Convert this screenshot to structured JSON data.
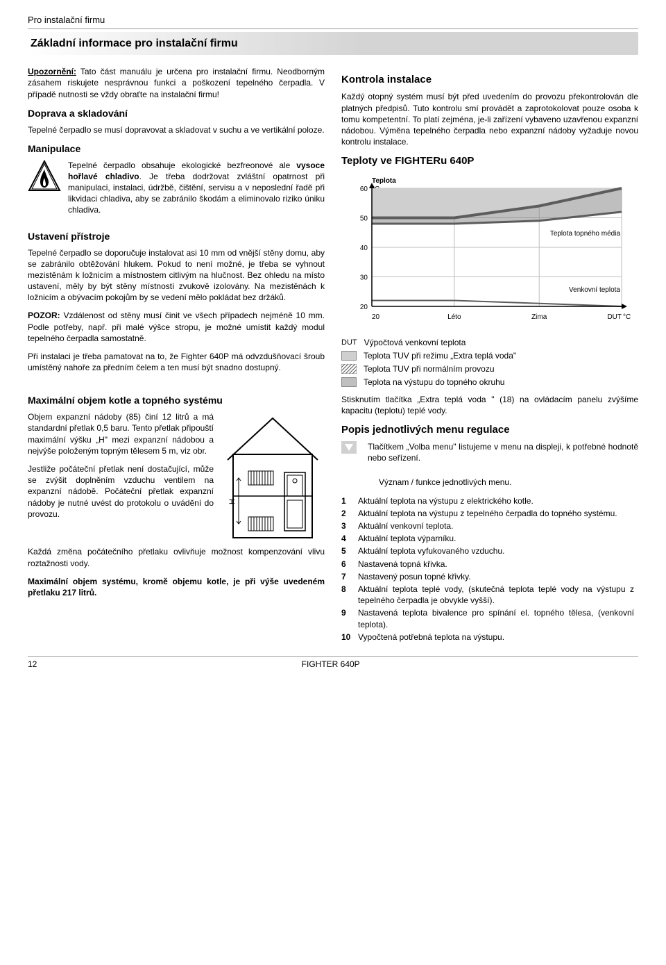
{
  "header": {
    "small": "Pro instalační firmu",
    "title": "Základní informace pro instalační firmu"
  },
  "left": {
    "p1a": "Upozornění:",
    "p1b": " Tato část manuálu je určena pro instalační firmu. Neodborným zásahem riskujete nesprávnou funkci a poškození tepelného čerpadla. V případě nutnosti se vždy obraťte na instalační firmu!",
    "h_transport": "Doprava a skladování",
    "p_transport": "Tepelné čerpadlo se musí dopravovat a skladovat v suchu a ve vertikální poloze.",
    "h_manip": "Manipulace",
    "p_manip": "Tepelné čerpadlo obsahuje ekologické bezfreonové ale ",
    "p_manip_b": "vysoce hořlavé chladivo",
    "p_manip2": ".\nJe třeba dodržovat zvláštní opatrnost při manipulaci, instalaci, údržbě, čištění, servisu a v neposlední řadě při likvidaci chladiva, aby se zabránilo škodám a eliminovalo riziko úniku chladiva.",
    "h_ustav": "Ustavení přístroje",
    "p_ustav1": "Tepelné čerpadlo se doporučuje instalovat asi 10 mm od vnější stěny domu, aby se zabránilo obtěžování hlukem. Pokud to není možné, je třeba se vyhnout mezistěnám k ložnicím a místnostem citlivým na hlučnost. Bez ohledu na místo ustavení, měly by být stěny místností zvukově izolovány. Na mezistěnách k ložnicím a obývacím pokojům by se vedení mělo pokládat bez držáků.",
    "p_ustav2a": "POZOR:",
    "p_ustav2b": " Vzdálenost od stěny musí činit ve všech případech nejméně 10 mm. Podle potřeby, např. při malé výšce stropu, je možné umístit každý modul tepelného čerpadla samostatně.",
    "p_ustav3": "Při instalaci je třeba pamatovat na to, že Fighter 640P má odvzdušňovací šroub umístěný nahoře za předním čelem a ten musí být snadno dostupný.",
    "h_maxvol": "Maximální objem kotle a topného systému",
    "p_maxvol1": "Objem expanzní nádoby (85) činí 12 litrů a má standardní přetlak 0,5 baru. Tento přetlak připouští maximální výšku „H\" mezi expanzní nádobou a nejvýše položeným topným tělesem 5 m, viz obr.",
    "p_maxvol2": "Jestliže počáteční přetlak není dostačující, může se zvýšit doplněním vzduchu ventilem na expanzní nádobě. Počáteční přetlak expanzní nádoby je nutné uvést do protokolu o uvádění do provozu.",
    "p_maxvol3": "Každá změna počátečního přetlaku ovlivňuje možnost kompenzování vlivu roztažnosti vody.",
    "p_maxvol4": "Maximální objem systému, kromě objemu kotle, je při výše uvedeném přetlaku 217 litrů."
  },
  "right": {
    "h_kontrola": "Kontrola instalace",
    "p_kontrola": "Každý otopný systém musí být před uvedením do provozu překontrolován dle platných předpisů. Tuto kontrolu smí provádět a zaprotokolovat pouze osoba k tomu kompetentní. To platí zejména, je-li zařízení vybaveno uzavřenou expanzní nádobou. Výměna tepelného čerpadla nebo expanzní nádoby vyžaduje novou kontrolu instalace.",
    "h_teploty": "Teploty ve FIGHTERu 640P",
    "chart": {
      "type": "line",
      "y_label": "Teplota",
      "y_unit": "°C",
      "y_min": 20,
      "y_max": 60,
      "y_ticks": [
        20,
        30,
        40,
        50,
        60
      ],
      "x_categories": [
        "20",
        "Léto",
        "Zima",
        "DUT"
      ],
      "x_unit": "°C",
      "line1_label": "Teplota topného média",
      "line2_label": "Venkovní teplota",
      "grid_color": "#bdbdbd",
      "line1_color": "#5c5c5c",
      "line2_color": "#5c5c5c",
      "fill_color_top": "#cfcfcf",
      "fill_color_gap": "#808080",
      "background": "#ffffff",
      "font_size": 10
    },
    "legend": [
      {
        "key": "DUT",
        "label": "Výpočtová venkovní teplota"
      },
      {
        "key": "solid",
        "label": "Teplota TUV při režimu „Extra teplá voda\""
      },
      {
        "key": "hatch",
        "label": "Teplota TUV při normálním provozu"
      },
      {
        "key": "gray",
        "label": "Teplota na výstupu do topného okruhu"
      }
    ],
    "p_button": "Stisknutím tlačítka „Extra teplá voda \" (18) na ovládacím panelu zvýšíme kapacitu (teplotu) teplé vody.",
    "h_menu": "Popis jednotlivých menu regulace",
    "p_menu_btn": "Tlačítkem „Volba menu\" listujeme v menu na displeji, k potřebné hodnotě nebo seřízení.",
    "p_menu_sub": "Význam / funkce jednotlivých menu.",
    "menu": [
      {
        "n": "1",
        "t": "Aktuální teplota na výstupu z elektrického kotle."
      },
      {
        "n": "2",
        "t": "Aktuální teplota na výstupu z tepelného čerpadla do topného systému."
      },
      {
        "n": "3",
        "t": "Aktuální venkovní teplota."
      },
      {
        "n": "4",
        "t": "Aktuální teplota výparníku."
      },
      {
        "n": "5",
        "t": "Aktuální teplota vyfukovaného vzduchu."
      },
      {
        "n": "6",
        "t": "Nastavená topná křivka."
      },
      {
        "n": "7",
        "t": "Nastavený posun topné křivky."
      },
      {
        "n": "8",
        "t": "Aktuální teplota teplé vody, (skutečná teplota teplé vody na výstupu z tepelného čerpadla je obvykle vyšší)."
      },
      {
        "n": "9",
        "t": "Nastavená teplota bivalence pro spínání el. topného tělesa, (venkovní teplota)."
      },
      {
        "n": "10",
        "t": "Vypočtená potřebná teplota na výstupu."
      }
    ]
  },
  "footer": {
    "page": "12",
    "model": "FIGHTER 640P"
  }
}
